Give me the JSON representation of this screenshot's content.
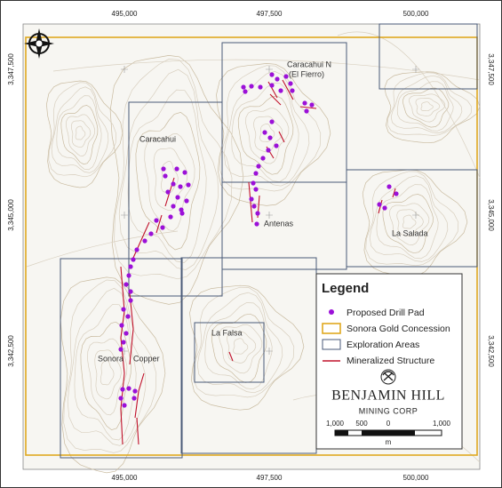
{
  "map": {
    "x_labels": [
      "495,000",
      "497,500",
      "500,000"
    ],
    "y_labels": [
      "3,347,500",
      "3,345,000",
      "3,342,500"
    ],
    "areas": {
      "caracahui_n": [
        "Caracahui N",
        "(El Fierro)"
      ],
      "caracahui": "Caracahui",
      "antenas": "Antenas",
      "la_salada": "La Salada",
      "la_falsa": "La Falsa",
      "sonora_copper": [
        "Sonora",
        "Copper"
      ]
    },
    "legend": {
      "title": "Legend",
      "items": [
        "Proposed Drill Pad",
        "Sonora Gold Concession",
        "Exploration Areas",
        "Mineralized Structure"
      ]
    },
    "logo": {
      "name": "BENJAMIN HILL",
      "sub": "MINING CORP"
    },
    "scale": {
      "labels": [
        "1,000",
        "500",
        "0",
        "1,000"
      ],
      "unit": "m"
    }
  }
}
